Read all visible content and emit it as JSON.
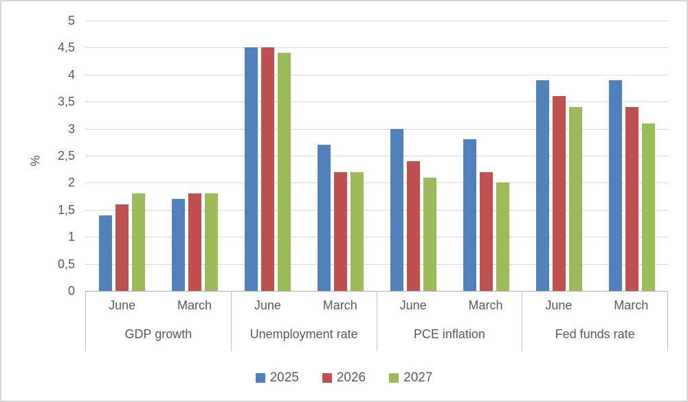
{
  "chart_data": {
    "type": "bar",
    "title": "",
    "ylabel": "%",
    "xlabel": "",
    "ylim": [
      0,
      5
    ],
    "ytick_step": 0.5,
    "ytick_labels": [
      "0",
      "0,5",
      "1",
      "1,5",
      "2",
      "2,5",
      "3",
      "3,5",
      "4",
      "4,5",
      "5"
    ],
    "decimal_separator": ",",
    "grid": true,
    "legend_position": "bottom",
    "groups": [
      "GDP growth",
      "Unemployment rate",
      "PCE inflation",
      "Fed funds rate"
    ],
    "subcategories": [
      "June",
      "March"
    ],
    "category_order": [
      "GDP growth / June",
      "GDP growth / March",
      "Unemployment rate / June",
      "Unemployment rate / March",
      "PCE inflation / June",
      "PCE inflation / March",
      "Fed funds rate / June",
      "Fed funds rate / March"
    ],
    "series": [
      {
        "name": "2025",
        "color": "#4F81BD",
        "values": [
          1.4,
          1.7,
          4.5,
          2.7,
          3.0,
          2.8,
          3.9,
          3.9
        ]
      },
      {
        "name": "2026",
        "color": "#C0504D",
        "values": [
          1.6,
          1.8,
          4.5,
          2.2,
          2.4,
          2.2,
          3.6,
          3.4
        ]
      },
      {
        "name": "2027",
        "color": "#9BBB59",
        "values": [
          1.8,
          1.8,
          4.4,
          2.2,
          2.1,
          2.0,
          3.4,
          3.1
        ]
      }
    ]
  },
  "colors": {
    "gridline": "#D9D9D9",
    "axis_line": "#ABABAB",
    "divider": "#BFBFBF",
    "text": "#595959",
    "canvas_border": "#D6D6D6",
    "background": "#FFFFFF"
  }
}
